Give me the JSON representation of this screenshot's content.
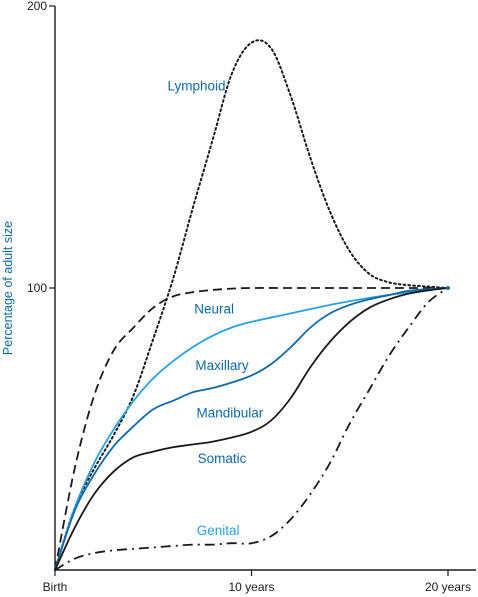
{
  "chart_data": {
    "type": "line",
    "ylabel": "Percentage of adult size",
    "xlabel": "",
    "title": "",
    "x_range": [
      0,
      20
    ],
    "ylim": [
      0,
      200
    ],
    "x_ticks": [
      {
        "value": 0,
        "label": "Birth"
      },
      {
        "value": 10,
        "label": "10 years"
      },
      {
        "value": 20,
        "label": "20 years"
      }
    ],
    "y_ticks": [
      {
        "value": 100,
        "label": "100"
      },
      {
        "value": 200,
        "label": "200"
      }
    ],
    "grid": false,
    "legend": "labels placed on curves",
    "series": [
      {
        "key": "lymphoid",
        "name": "Lymphoid",
        "style": "dotted",
        "color": "#1a1a1a",
        "label_color": "#0d6aa5",
        "points": [
          [
            0,
            0
          ],
          [
            1,
            22
          ],
          [
            2,
            36
          ],
          [
            3,
            48
          ],
          [
            4,
            62
          ],
          [
            5,
            82
          ],
          [
            6,
            103
          ],
          [
            7,
            128
          ],
          [
            8,
            152
          ],
          [
            9,
            176
          ],
          [
            10,
            187
          ],
          [
            11,
            185
          ],
          [
            12,
            168
          ],
          [
            13,
            146
          ],
          [
            14,
            127
          ],
          [
            15,
            113
          ],
          [
            16,
            105
          ],
          [
            17,
            102
          ],
          [
            18,
            101
          ],
          [
            19,
            100.5
          ],
          [
            20,
            100
          ]
        ]
      },
      {
        "key": "neural",
        "name": "Neural",
        "style": "dashed",
        "color": "#1a1a1a",
        "label_color": "#0d6aa5",
        "points": [
          [
            0,
            0
          ],
          [
            1,
            36
          ],
          [
            2,
            62
          ],
          [
            3,
            78
          ],
          [
            4,
            86
          ],
          [
            5,
            93
          ],
          [
            6,
            97
          ],
          [
            7,
            98.5
          ],
          [
            8,
            99.3
          ],
          [
            9,
            99.8
          ],
          [
            10,
            100
          ],
          [
            12,
            100
          ],
          [
            14,
            100
          ],
          [
            16,
            100
          ],
          [
            18,
            100
          ],
          [
            20,
            100
          ]
        ]
      },
      {
        "key": "general",
        "name": "",
        "style": "solid",
        "color": "#29a3dc",
        "label_color": "#29a3dc",
        "points": [
          [
            0,
            0
          ],
          [
            1,
            22
          ],
          [
            2,
            38
          ],
          [
            3,
            50
          ],
          [
            4,
            60
          ],
          [
            5,
            68
          ],
          [
            6,
            74
          ],
          [
            7,
            79
          ],
          [
            8,
            83
          ],
          [
            9,
            86
          ],
          [
            10,
            88
          ],
          [
            12,
            91
          ],
          [
            14,
            94
          ],
          [
            16,
            96.5
          ],
          [
            18,
            98.5
          ],
          [
            20,
            100
          ]
        ]
      },
      {
        "key": "maxillary",
        "name": "Maxillary",
        "style": "solid",
        "color": "#0f6aa8",
        "label_color": "#0d6aa5",
        "points": [
          [
            0,
            0
          ],
          [
            1,
            21
          ],
          [
            2,
            34
          ],
          [
            3,
            44
          ],
          [
            4,
            51
          ],
          [
            5,
            57
          ],
          [
            6,
            60
          ],
          [
            7,
            63
          ],
          [
            8,
            64.5
          ],
          [
            9,
            66.5
          ],
          [
            10,
            69
          ],
          [
            11,
            73
          ],
          [
            12,
            79
          ],
          [
            13,
            86
          ],
          [
            14,
            91
          ],
          [
            15,
            94
          ],
          [
            16,
            96
          ],
          [
            17,
            97.5
          ],
          [
            18,
            99
          ],
          [
            19,
            99.6
          ],
          [
            20,
            100
          ]
        ]
      },
      {
        "key": "mandibular",
        "name": "Mandibular",
        "style": "solid",
        "color": "#1a1a1a",
        "label_color": "#0d6aa5",
        "points": [
          [
            0,
            0
          ],
          [
            1,
            15
          ],
          [
            2,
            27
          ],
          [
            3,
            35
          ],
          [
            4,
            40
          ],
          [
            5,
            42
          ],
          [
            6,
            43.5
          ],
          [
            7,
            44.5
          ],
          [
            8,
            45.5
          ],
          [
            9,
            47
          ],
          [
            10,
            49
          ],
          [
            11,
            53
          ],
          [
            12,
            61
          ],
          [
            13,
            72
          ],
          [
            14,
            81
          ],
          [
            15,
            88
          ],
          [
            16,
            93
          ],
          [
            17,
            96
          ],
          [
            18,
            98
          ],
          [
            19,
            99.2
          ],
          [
            20,
            100
          ]
        ]
      },
      {
        "key": "genital",
        "name": "Genital",
        "style": "dashdot",
        "color": "#1a1a1a",
        "label_color": "#29a3dc",
        "points": [
          [
            0,
            0
          ],
          [
            1,
            4
          ],
          [
            2,
            6
          ],
          [
            3,
            7
          ],
          [
            4,
            7.5
          ],
          [
            5,
            8
          ],
          [
            6,
            8.5
          ],
          [
            7,
            9
          ],
          [
            8,
            9
          ],
          [
            9,
            9.5
          ],
          [
            10,
            9.5
          ],
          [
            11,
            12
          ],
          [
            12,
            18
          ],
          [
            13,
            27
          ],
          [
            14,
            38
          ],
          [
            15,
            52
          ],
          [
            16,
            64
          ],
          [
            17,
            76
          ],
          [
            18,
            86
          ],
          [
            19,
            95
          ],
          [
            20,
            100
          ]
        ]
      }
    ],
    "annotations": [
      {
        "text": "Lymphoid",
        "x": 7.2,
        "y": 170,
        "color": "#0d6aa5"
      },
      {
        "text": "Neural",
        "x": 8.1,
        "y": 91,
        "color": "#0d6aa5"
      },
      {
        "text": "Maxillary",
        "x": 8.5,
        "y": 71,
        "color": "#0d6aa5"
      },
      {
        "text": "Mandibular",
        "x": 8.9,
        "y": 54,
        "color": "#0d6aa5"
      },
      {
        "text": "Somatic",
        "x": 8.5,
        "y": 38,
        "color": "#0d6aa5"
      },
      {
        "text": "Genital",
        "x": 8.3,
        "y": 12.5,
        "color": "#29a3dc"
      }
    ],
    "ylabel_color": "#0d6aa5",
    "axis_color": "#1a1a1a"
  }
}
